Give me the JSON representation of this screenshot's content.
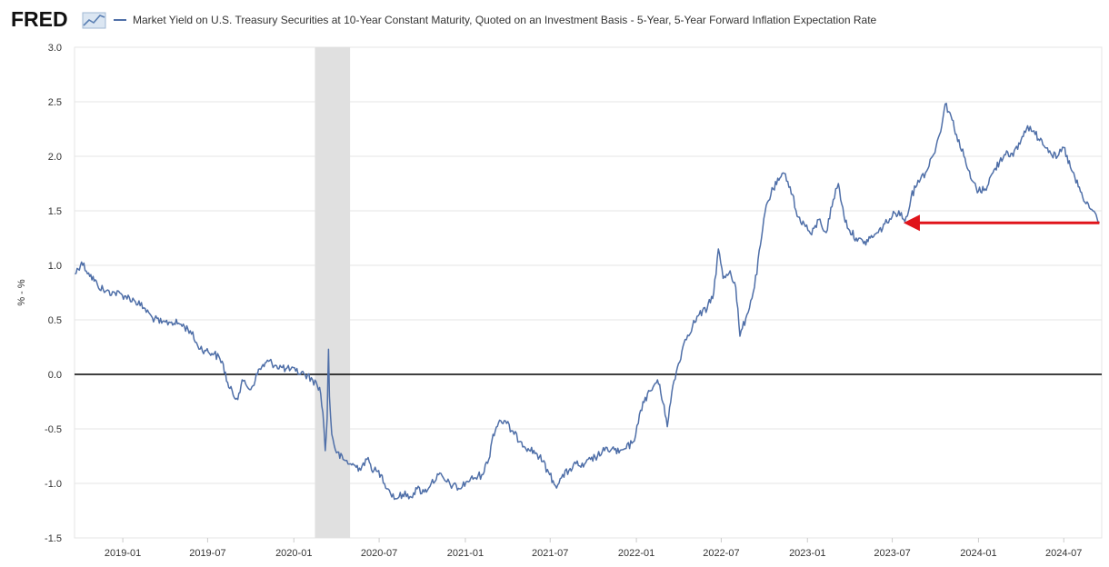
{
  "header": {
    "logo_text": "FRED",
    "logo_icon": "line-chart-icon"
  },
  "chart_data": {
    "type": "line",
    "title": "Market Yield on U.S. Treasury Securities at 10-Year Constant Maturity, Quoted on an Investment Basis - 5-Year, 5-Year Forward Inflation Expectation Rate",
    "xlabel": "",
    "ylabel": "% - %",
    "ylim": [
      -1.5,
      3.0
    ],
    "yticks": [
      "3.0",
      "2.5",
      "2.0",
      "1.5",
      "1.0",
      "0.5",
      "0.0",
      "-0.5",
      "-1.0",
      "-1.5"
    ],
    "xticks": [
      "2019-01",
      "2019-07",
      "2020-01",
      "2020-07",
      "2021-01",
      "2021-07",
      "2022-01",
      "2022-07",
      "2023-01",
      "2023-07",
      "2024-01",
      "2024-07"
    ],
    "xlim": [
      "2018-09-20",
      "2024-09-20"
    ],
    "grid": "horizontal",
    "legend": "top",
    "zero_line": 0.0,
    "recession_shading": [
      "2020-02-15",
      "2020-04-30"
    ],
    "annotation": {
      "type": "arrow",
      "from": [
        "2024-09-15",
        1.39
      ],
      "to": [
        "2023-07-25",
        1.39
      ],
      "color": "#e0141a"
    },
    "series": [
      {
        "name": "Market Yield on U.S. Treasury Securities at 10-Year Constant Maturity, Quoted on an Investment Basis - 5-Year, 5-Year Forward Inflation Expectation Rate",
        "color": "#4f6fa8",
        "points": [
          [
            "2018-09-21",
            0.92
          ],
          [
            "2018-10-05",
            1.03
          ],
          [
            "2018-10-20",
            0.93
          ],
          [
            "2018-11-08",
            0.82
          ],
          [
            "2018-11-25",
            0.76
          ],
          [
            "2018-12-15",
            0.75
          ],
          [
            "2019-01-05",
            0.72
          ],
          [
            "2019-01-25",
            0.68
          ],
          [
            "2019-02-15",
            0.61
          ],
          [
            "2019-03-05",
            0.52
          ],
          [
            "2019-03-25",
            0.47
          ],
          [
            "2019-04-15",
            0.48
          ],
          [
            "2019-05-05",
            0.46
          ],
          [
            "2019-05-25",
            0.4
          ],
          [
            "2019-06-10",
            0.26
          ],
          [
            "2019-06-25",
            0.22
          ],
          [
            "2019-07-15",
            0.19
          ],
          [
            "2019-08-01",
            0.12
          ],
          [
            "2019-08-15",
            -0.12
          ],
          [
            "2019-09-01",
            -0.22
          ],
          [
            "2019-09-15",
            -0.06
          ],
          [
            "2019-10-01",
            -0.14
          ],
          [
            "2019-10-20",
            0.05
          ],
          [
            "2019-11-08",
            0.12
          ],
          [
            "2019-11-25",
            0.08
          ],
          [
            "2019-12-15",
            0.05
          ],
          [
            "2020-01-05",
            0.03
          ],
          [
            "2020-01-25",
            0.0
          ],
          [
            "2020-02-10",
            -0.05
          ],
          [
            "2020-02-25",
            -0.12
          ],
          [
            "2020-03-03",
            -0.35
          ],
          [
            "2020-03-08",
            -0.7
          ],
          [
            "2020-03-12",
            -0.4
          ],
          [
            "2020-03-15",
            0.23
          ],
          [
            "2020-03-17",
            -0.2
          ],
          [
            "2020-03-22",
            -0.55
          ],
          [
            "2020-04-01",
            -0.72
          ],
          [
            "2020-04-15",
            -0.78
          ],
          [
            "2020-05-01",
            -0.82
          ],
          [
            "2020-05-20",
            -0.86
          ],
          [
            "2020-06-05",
            -0.78
          ],
          [
            "2020-06-20",
            -0.88
          ],
          [
            "2020-07-05",
            -0.92
          ],
          [
            "2020-07-20",
            -1.05
          ],
          [
            "2020-08-05",
            -1.14
          ],
          [
            "2020-08-20",
            -1.1
          ],
          [
            "2020-09-05",
            -1.12
          ],
          [
            "2020-09-20",
            -1.05
          ],
          [
            "2020-10-05",
            -1.08
          ],
          [
            "2020-10-20",
            -1.0
          ],
          [
            "2020-11-05",
            -0.92
          ],
          [
            "2020-11-20",
            -0.98
          ],
          [
            "2020-12-05",
            -1.02
          ],
          [
            "2020-12-20",
            -1.05
          ],
          [
            "2021-01-05",
            -0.98
          ],
          [
            "2021-01-20",
            -0.95
          ],
          [
            "2021-02-05",
            -0.92
          ],
          [
            "2021-02-20",
            -0.78
          ],
          [
            "2021-03-01",
            -0.55
          ],
          [
            "2021-03-15",
            -0.42
          ],
          [
            "2021-03-30",
            -0.45
          ],
          [
            "2021-04-15",
            -0.55
          ],
          [
            "2021-05-01",
            -0.62
          ],
          [
            "2021-05-15",
            -0.68
          ],
          [
            "2021-06-01",
            -0.72
          ],
          [
            "2021-06-15",
            -0.8
          ],
          [
            "2021-06-30",
            -0.92
          ],
          [
            "2021-07-12",
            -1.02
          ],
          [
            "2021-07-25",
            -0.95
          ],
          [
            "2021-08-10",
            -0.88
          ],
          [
            "2021-08-25",
            -0.82
          ],
          [
            "2021-09-10",
            -0.85
          ],
          [
            "2021-09-25",
            -0.78
          ],
          [
            "2021-10-10",
            -0.75
          ],
          [
            "2021-10-25",
            -0.7
          ],
          [
            "2021-11-10",
            -0.68
          ],
          [
            "2021-11-25",
            -0.72
          ],
          [
            "2021-12-10",
            -0.68
          ],
          [
            "2021-12-25",
            -0.62
          ],
          [
            "2022-01-05",
            -0.45
          ],
          [
            "2022-01-15",
            -0.25
          ],
          [
            "2022-02-01",
            -0.15
          ],
          [
            "2022-02-15",
            -0.05
          ],
          [
            "2022-03-01",
            -0.28
          ],
          [
            "2022-03-08",
            -0.48
          ],
          [
            "2022-03-20",
            -0.1
          ],
          [
            "2022-04-01",
            0.1
          ],
          [
            "2022-04-15",
            0.32
          ],
          [
            "2022-05-01",
            0.45
          ],
          [
            "2022-05-15",
            0.55
          ],
          [
            "2022-06-01",
            0.6
          ],
          [
            "2022-06-15",
            0.75
          ],
          [
            "2022-06-25",
            1.15
          ],
          [
            "2022-07-05",
            0.88
          ],
          [
            "2022-07-20",
            0.95
          ],
          [
            "2022-08-01",
            0.8
          ],
          [
            "2022-08-10",
            0.35
          ],
          [
            "2022-08-25",
            0.55
          ],
          [
            "2022-09-10",
            0.8
          ],
          [
            "2022-09-25",
            1.25
          ],
          [
            "2022-10-05",
            1.55
          ],
          [
            "2022-10-20",
            1.7
          ],
          [
            "2022-11-01",
            1.78
          ],
          [
            "2022-11-15",
            1.84
          ],
          [
            "2022-11-30",
            1.65
          ],
          [
            "2022-12-10",
            1.45
          ],
          [
            "2022-12-25",
            1.38
          ],
          [
            "2023-01-10",
            1.28
          ],
          [
            "2023-01-25",
            1.42
          ],
          [
            "2023-02-10",
            1.3
          ],
          [
            "2023-02-25",
            1.6
          ],
          [
            "2023-03-08",
            1.75
          ],
          [
            "2023-03-20",
            1.45
          ],
          [
            "2023-04-01",
            1.32
          ],
          [
            "2023-04-15",
            1.25
          ],
          [
            "2023-05-01",
            1.2
          ],
          [
            "2023-05-15",
            1.25
          ],
          [
            "2023-06-01",
            1.3
          ],
          [
            "2023-06-15",
            1.38
          ],
          [
            "2023-07-01",
            1.45
          ],
          [
            "2023-07-15",
            1.5
          ],
          [
            "2023-07-28",
            1.4
          ],
          [
            "2023-08-10",
            1.62
          ],
          [
            "2023-08-25",
            1.78
          ],
          [
            "2023-09-10",
            1.85
          ],
          [
            "2023-09-25",
            2.0
          ],
          [
            "2023-10-10",
            2.2
          ],
          [
            "2023-10-22",
            2.48
          ],
          [
            "2023-11-01",
            2.4
          ],
          [
            "2023-11-15",
            2.2
          ],
          [
            "2023-12-01",
            2.0
          ],
          [
            "2023-12-15",
            1.8
          ],
          [
            "2024-01-01",
            1.68
          ],
          [
            "2024-01-15",
            1.7
          ],
          [
            "2024-02-01",
            1.85
          ],
          [
            "2024-02-15",
            1.95
          ],
          [
            "2024-03-01",
            2.05
          ],
          [
            "2024-03-15",
            2.0
          ],
          [
            "2024-04-01",
            2.15
          ],
          [
            "2024-04-15",
            2.28
          ],
          [
            "2024-05-01",
            2.2
          ],
          [
            "2024-05-15",
            2.15
          ],
          [
            "2024-06-01",
            2.05
          ],
          [
            "2024-06-15",
            1.98
          ],
          [
            "2024-07-01",
            2.08
          ],
          [
            "2024-07-15",
            1.9
          ],
          [
            "2024-08-01",
            1.72
          ],
          [
            "2024-08-15",
            1.58
          ],
          [
            "2024-09-01",
            1.5
          ],
          [
            "2024-09-15",
            1.4
          ]
        ]
      }
    ]
  }
}
